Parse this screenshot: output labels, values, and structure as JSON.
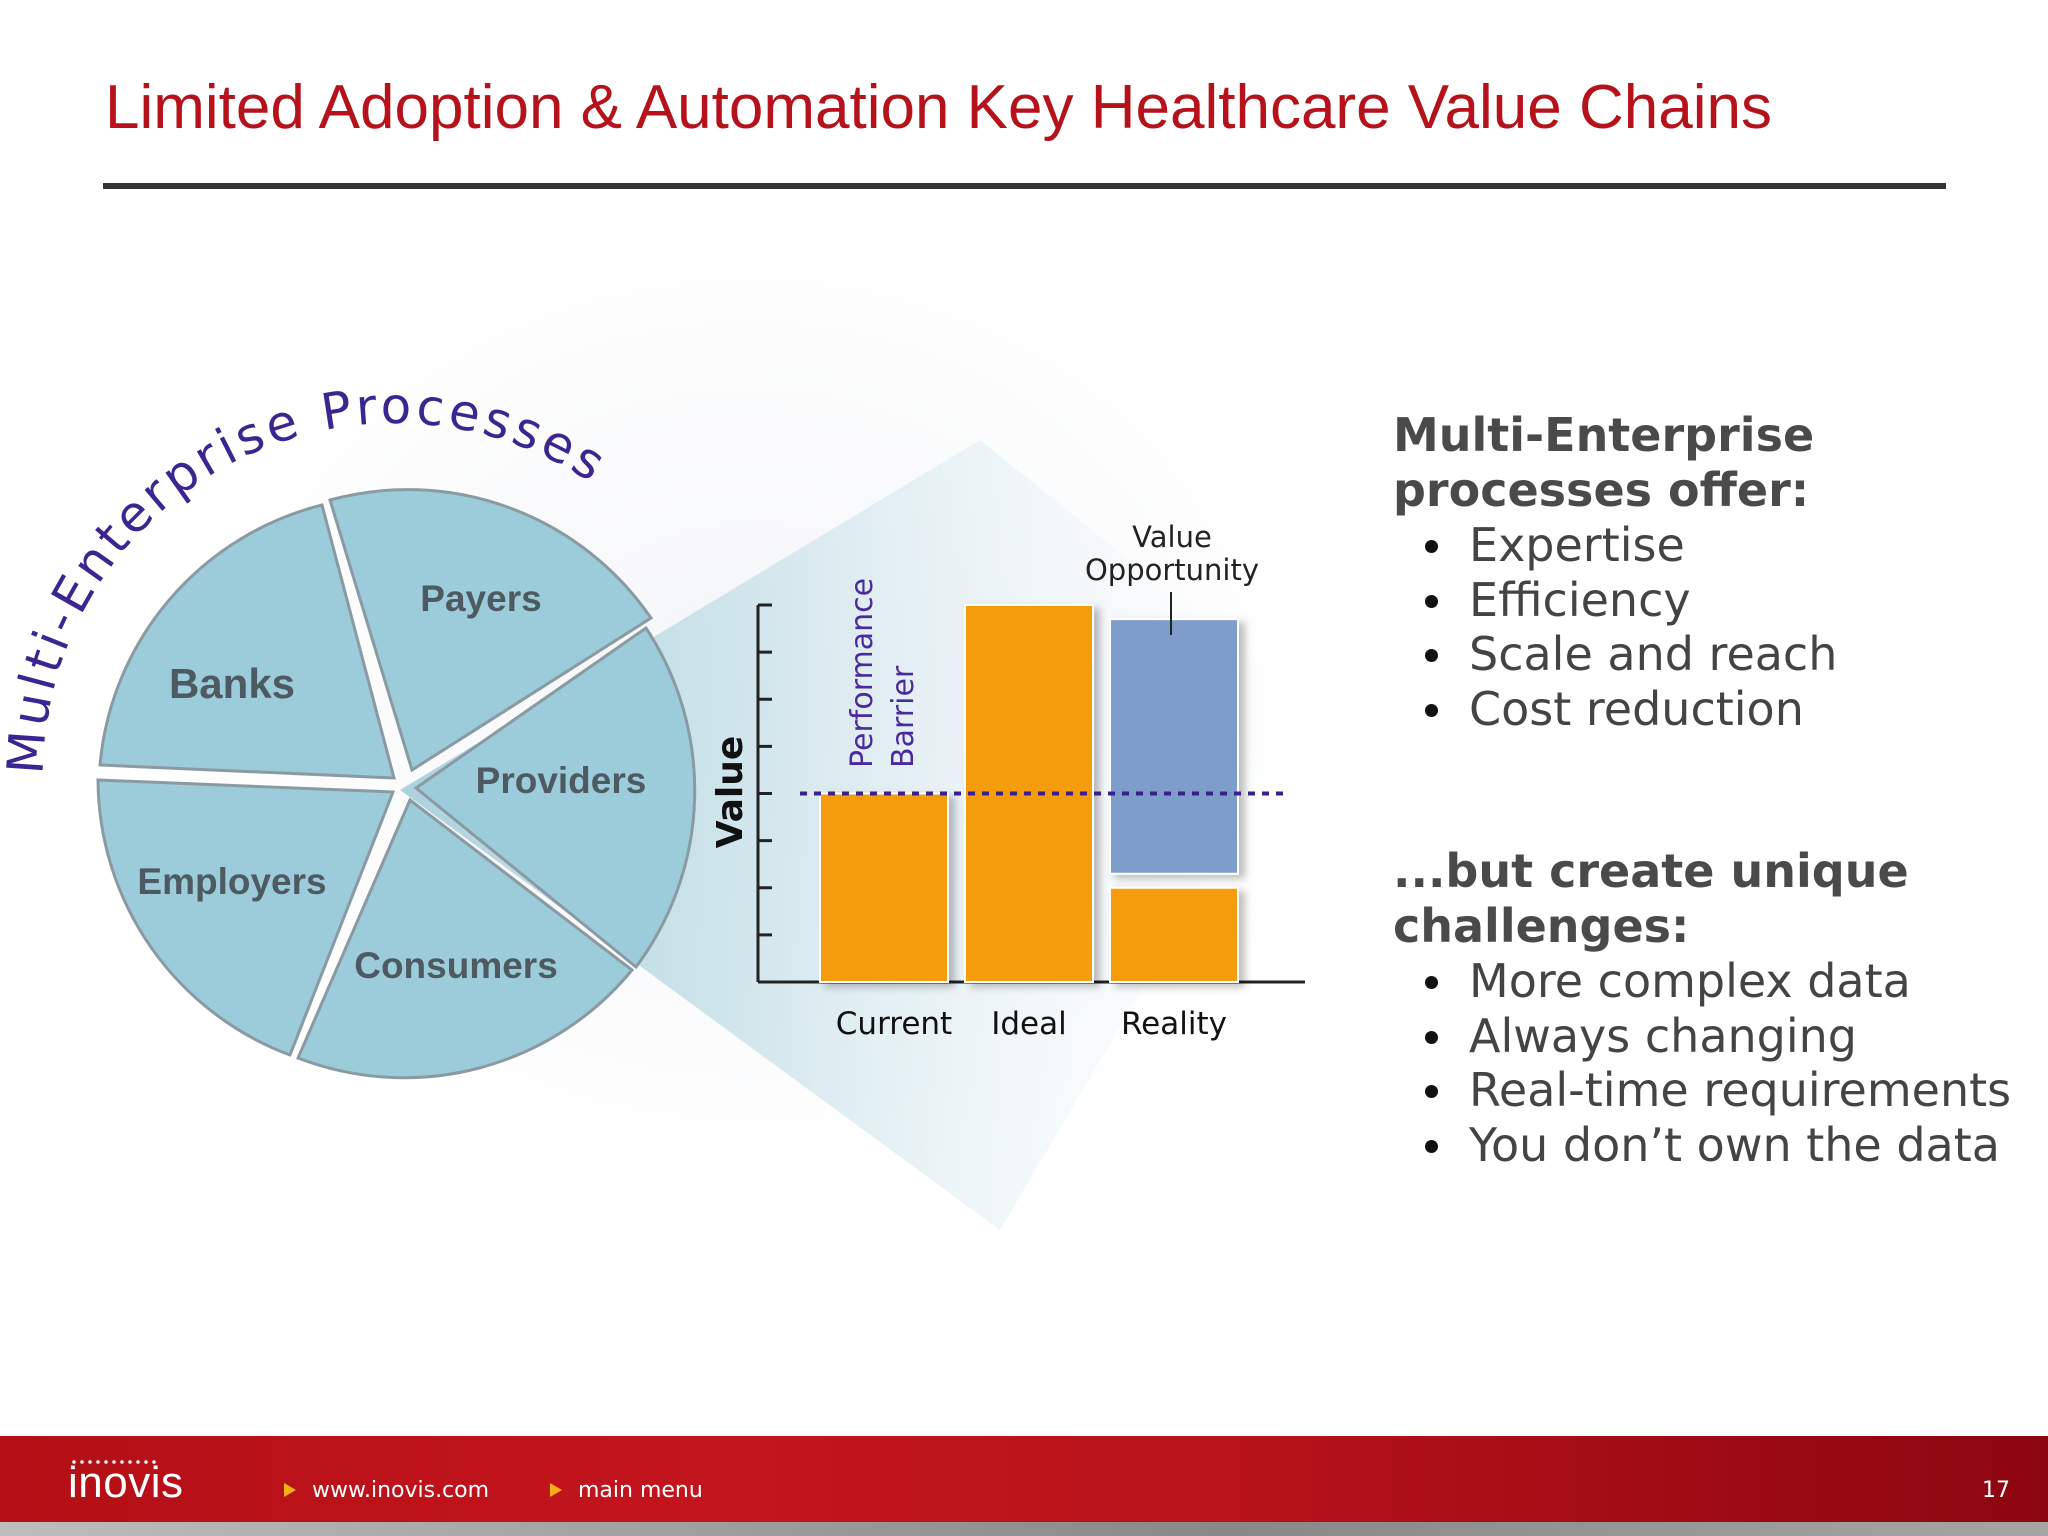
{
  "title": "Limited Adoption & Automation Key Healthcare Value Chains",
  "diagram": {
    "arc_label": "Multi-Enterprise Processes",
    "segments": [
      "Banks",
      "Payers",
      "Providers",
      "Consumers",
      "Employers"
    ],
    "performance_barrier_lines": [
      "Performance",
      "Barrier"
    ],
    "value_opportunity_lines": [
      "Value",
      "Opportunity"
    ]
  },
  "colors": {
    "title": "#b5121b",
    "segment_fill": "#9ccbd9",
    "bar_orange": "#f59c10",
    "bar_blue": "#7f9dcb",
    "barrier_line": "#3b1f8c",
    "footer_red": "#c3151d"
  },
  "chart_data": {
    "type": "bar",
    "categories": [
      "Current",
      "Ideal",
      "Reality"
    ],
    "series": [
      {
        "values": [
          4,
          8,
          2
        ]
      },
      {
        "values": [
          0,
          0,
          5.7
        ]
      }
    ],
    "stacking": "stacked-with-gap",
    "barrier_level": 4,
    "ylim": [
      0,
      8
    ],
    "yticks": 8,
    "ylabel": "Value",
    "xlabel": "",
    "tick_labels_shown": false,
    "grid": false
  },
  "right_panel": {
    "section1": {
      "heading_lines": [
        "Multi-Enterprise",
        "processes offer:"
      ],
      "bullets": [
        "Expertise",
        "Efficiency",
        "Scale and reach",
        "Cost reduction"
      ]
    },
    "section2": {
      "heading_lines": [
        "...but create unique",
        "challenges:"
      ],
      "bullets": [
        "More complex data",
        "Always changing",
        "Real-time requirements",
        "You don’t own the data"
      ]
    }
  },
  "footer": {
    "logo": "inovis",
    "links": [
      "www.inovis.com",
      "main menu"
    ],
    "page_number": "17"
  }
}
